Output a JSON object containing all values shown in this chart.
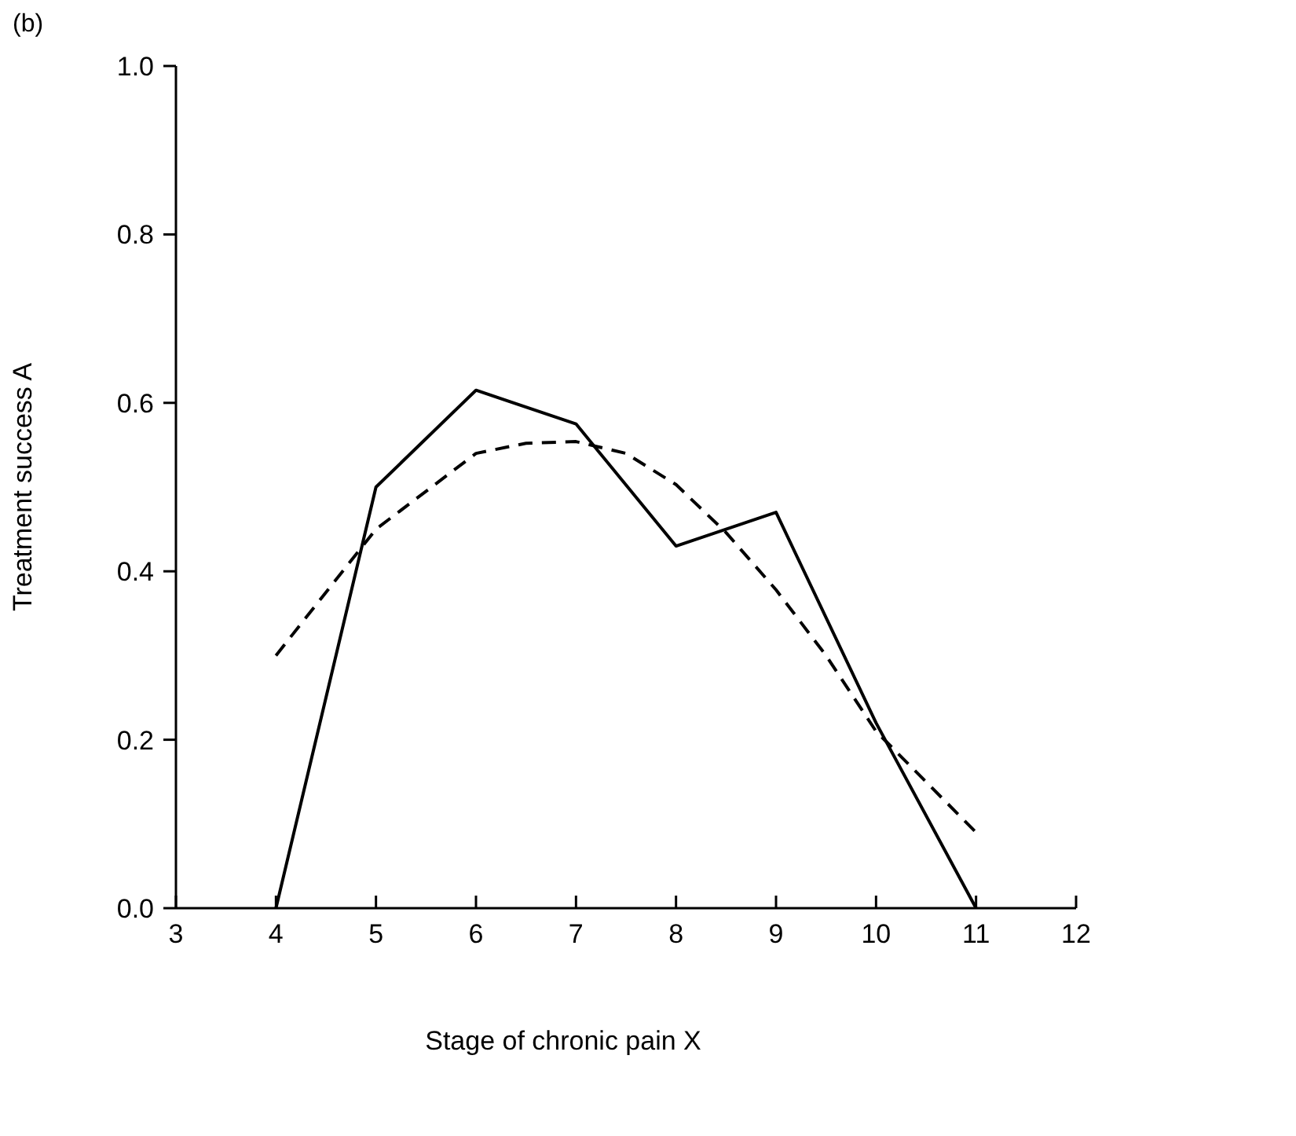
{
  "chart_data": {
    "type": "line",
    "xlabel": "Stage of chronic pain X",
    "ylabel": "Treatment success A",
    "annotations": [
      "(b)"
    ],
    "xlim": [
      3,
      12
    ],
    "xticks": [
      3,
      4,
      5,
      6,
      7,
      8,
      9,
      10,
      11,
      12
    ],
    "ylim": [
      0,
      1
    ],
    "yticks": [
      {
        "value": 0,
        "label": "0.0"
      },
      {
        "value": 0.2,
        "label": "0.2"
      },
      {
        "value": 0.4,
        "label": "0.4"
      },
      {
        "value": 0.6,
        "label": "0.6"
      },
      {
        "value": 0.8,
        "label": "0.8"
      },
      {
        "value": 1,
        "label": "1.0"
      }
    ],
    "grid": false,
    "marker": "none",
    "series": [
      {
        "color": "#000000",
        "line_style": "solid",
        "x": [
          4,
          5,
          6,
          7,
          8,
          9,
          10,
          11
        ],
        "values": [
          0,
          0.5,
          0.615,
          0.575,
          0.43,
          0.47,
          0.22,
          0
        ]
      },
      {
        "color": "#000000",
        "line_style": "dashed",
        "x": [
          4,
          5,
          6,
          6.5,
          7,
          7.5,
          8,
          8.5,
          9,
          9.5,
          10,
          11
        ],
        "values": [
          0.3,
          0.45,
          0.54,
          0.552,
          0.554,
          0.54,
          0.503,
          0.446,
          0.378,
          0.3,
          0.21,
          0.09
        ]
      }
    ]
  }
}
